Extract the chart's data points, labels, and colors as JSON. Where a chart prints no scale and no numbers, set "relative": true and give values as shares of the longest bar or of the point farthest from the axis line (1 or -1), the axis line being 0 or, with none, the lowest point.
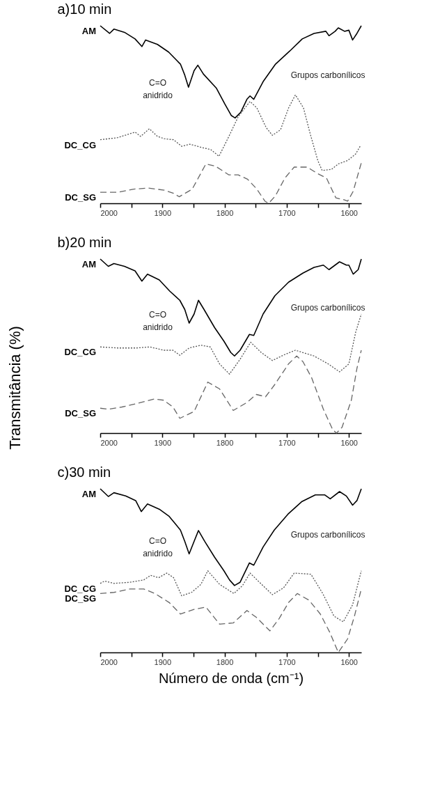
{
  "chart_data": [
    {
      "type": "line",
      "title": "a)10 min",
      "relative": true,
      "xlim": [
        2000,
        1580
      ],
      "xticks": [
        2000,
        {
          "value": 1950,
          "label": null
        },
        1900,
        {
          "value": 1850,
          "label": null
        },
        1800,
        {
          "value": 1750,
          "label": null
        },
        1700,
        {
          "value": 1650,
          "label": null
        },
        1600
      ],
      "grid": false,
      "legend": false,
      "marker": "none",
      "annotations": [
        "C=O\nanidrido",
        "Grupos carbonílicos"
      ],
      "series": [
        {
          "name": "AM",
          "color": "#000000",
          "line_style": "solid",
          "x": [
            2000,
            1985,
            1978,
            1961,
            1944,
            1933,
            1927,
            1908,
            1890,
            1871,
            1864,
            1858,
            1849,
            1843,
            1834,
            1813,
            1800,
            1789,
            1783,
            1774,
            1764,
            1759,
            1753,
            1738,
            1718,
            1695,
            1675,
            1656,
            1637,
            1632,
            1622,
            1617,
            1607,
            1600,
            1594,
            1587,
            1580
          ],
          "values": [
            1.0,
            0.957,
            0.981,
            0.963,
            0.926,
            0.883,
            0.92,
            0.895,
            0.852,
            0.784,
            0.722,
            0.654,
            0.747,
            0.778,
            0.728,
            0.648,
            0.562,
            0.494,
            0.481,
            0.512,
            0.586,
            0.605,
            0.586,
            0.685,
            0.784,
            0.858,
            0.926,
            0.957,
            0.969,
            0.944,
            0.969,
            0.988,
            0.969,
            0.975,
            0.92,
            0.957,
            1.0
          ]
        },
        {
          "name": "DC_CG",
          "color": "#555555",
          "line_style": "dotted",
          "x": [
            2000,
            1972,
            1944,
            1935,
            1921,
            1908,
            1897,
            1882,
            1869,
            1856,
            1837,
            1822,
            1809,
            1793,
            1778,
            1759,
            1748,
            1733,
            1723,
            1710,
            1697,
            1686,
            1673,
            1662,
            1650,
            1643,
            1628,
            1617,
            1602,
            1589,
            1581
          ],
          "values": [
            0.358,
            0.37,
            0.401,
            0.377,
            0.42,
            0.377,
            0.364,
            0.358,
            0.321,
            0.333,
            0.315,
            0.302,
            0.265,
            0.377,
            0.488,
            0.574,
            0.537,
            0.426,
            0.383,
            0.414,
            0.537,
            0.611,
            0.537,
            0.389,
            0.241,
            0.185,
            0.191,
            0.222,
            0.241,
            0.278,
            0.327
          ]
        },
        {
          "name": "DC_SG",
          "color": "#666666",
          "line_style": "dashed",
          "x": [
            2000,
            1972,
            1946,
            1923,
            1897,
            1882,
            1873,
            1852,
            1830,
            1815,
            1793,
            1778,
            1763,
            1748,
            1735,
            1729,
            1718,
            1703,
            1688,
            1667,
            1650,
            1636,
            1621,
            1607,
            1602,
            1593,
            1580
          ],
          "values": [
            0.062,
            0.062,
            0.08,
            0.086,
            0.074,
            0.056,
            0.037,
            0.08,
            0.222,
            0.21,
            0.16,
            0.16,
            0.136,
            0.08,
            0.012,
            0.0,
            0.043,
            0.142,
            0.204,
            0.204,
            0.167,
            0.142,
            0.031,
            0.019,
            0.012,
            0.068,
            0.228
          ]
        }
      ]
    },
    {
      "type": "line",
      "title": "b)20 min",
      "ylabel": "Transmitância (%)",
      "relative": true,
      "xlim": [
        2000,
        1580
      ],
      "xticks": [
        2000,
        {
          "value": 1950,
          "label": null
        },
        1900,
        {
          "value": 1850,
          "label": null
        },
        1800,
        {
          "value": 1750,
          "label": null
        },
        1700,
        {
          "value": 1650,
          "label": null
        },
        1600
      ],
      "grid": false,
      "legend": false,
      "marker": "none",
      "annotations": [
        "C=O\nanidrido",
        "Grupos carbonílicos"
      ],
      "series": [
        {
          "name": "AM",
          "color": "#000000",
          "line_style": "solid",
          "x": [
            2000,
            1987,
            1978,
            1961,
            1944,
            1933,
            1924,
            1905,
            1888,
            1872,
            1864,
            1857,
            1849,
            1842,
            1833,
            1816,
            1801,
            1790,
            1784,
            1775,
            1760,
            1753,
            1738,
            1719,
            1697,
            1674,
            1656,
            1641,
            1632,
            1615,
            1604,
            1600,
            1593,
            1585,
            1580
          ],
          "values": [
            1.0,
            0.958,
            0.974,
            0.958,
            0.932,
            0.873,
            0.913,
            0.88,
            0.815,
            0.763,
            0.71,
            0.632,
            0.684,
            0.763,
            0.71,
            0.606,
            0.528,
            0.463,
            0.443,
            0.476,
            0.567,
            0.561,
            0.684,
            0.789,
            0.867,
            0.919,
            0.952,
            0.965,
            0.939,
            0.984,
            0.965,
            0.965,
            0.913,
            0.939,
            1.0
          ]
        },
        {
          "name": "DC_CG",
          "color": "#555555",
          "line_style": "dotted",
          "x": [
            2000,
            1972,
            1942,
            1920,
            1898,
            1883,
            1872,
            1857,
            1838,
            1823,
            1808,
            1792,
            1775,
            1758,
            1741,
            1723,
            1704,
            1686,
            1656,
            1633,
            1615,
            1600,
            1589,
            1580
          ],
          "values": [
            0.495,
            0.489,
            0.489,
            0.495,
            0.476,
            0.476,
            0.447,
            0.489,
            0.505,
            0.495,
            0.397,
            0.339,
            0.424,
            0.522,
            0.463,
            0.417,
            0.45,
            0.476,
            0.443,
            0.397,
            0.352,
            0.397,
            0.58,
            0.684
          ]
        },
        {
          "name": "DC_SG",
          "color": "#666666",
          "line_style": "dashed",
          "x": [
            2000,
            1987,
            1965,
            1942,
            1913,
            1898,
            1883,
            1872,
            1849,
            1827,
            1808,
            1786,
            1764,
            1749,
            1734,
            1719,
            1697,
            1684,
            1674,
            1660,
            1641,
            1626,
            1620,
            1611,
            1596,
            1587,
            1580
          ],
          "values": [
            0.143,
            0.137,
            0.15,
            0.169,
            0.196,
            0.189,
            0.15,
            0.085,
            0.124,
            0.293,
            0.254,
            0.13,
            0.176,
            0.222,
            0.209,
            0.28,
            0.398,
            0.443,
            0.411,
            0.319,
            0.137,
            0.02,
            0.0,
            0.033,
            0.189,
            0.372,
            0.476
          ]
        }
      ]
    },
    {
      "type": "line",
      "title": "c)30 min",
      "xlabel": "Número de onda (cm⁻¹)",
      "relative": true,
      "xlim": [
        2000,
        1580
      ],
      "xticks": [
        2000,
        {
          "value": 1950,
          "label": null
        },
        1900,
        {
          "value": 1850,
          "label": null
        },
        1800,
        {
          "value": 1750,
          "label": null
        },
        1700,
        {
          "value": 1650,
          "label": null
        },
        1600
      ],
      "grid": false,
      "legend": false,
      "marker": "none",
      "annotations": [
        "C=O\nanidrido",
        "Grupos carbonílicos"
      ],
      "series": [
        {
          "name": "AM",
          "color": "#000000",
          "line_style": "solid",
          "x": [
            2000,
            1987,
            1978,
            1959,
            1943,
            1934,
            1924,
            1904,
            1889,
            1871,
            1864,
            1857,
            1849,
            1842,
            1832,
            1816,
            1801,
            1792,
            1784,
            1775,
            1760,
            1753,
            1738,
            1720,
            1698,
            1676,
            1654,
            1639,
            1630,
            1615,
            1604,
            1594,
            1587,
            1580
          ],
          "values": [
            1.0,
            0.953,
            0.976,
            0.956,
            0.928,
            0.861,
            0.907,
            0.873,
            0.831,
            0.748,
            0.679,
            0.602,
            0.679,
            0.745,
            0.679,
            0.582,
            0.499,
            0.443,
            0.409,
            0.429,
            0.547,
            0.533,
            0.644,
            0.748,
            0.845,
            0.921,
            0.963,
            0.963,
            0.939,
            0.983,
            0.956,
            0.9,
            0.928,
            1.0
          ]
        },
        {
          "name": "DC_CG",
          "color": "#555555",
          "line_style": "dotted",
          "x": [
            2000,
            1993,
            1978,
            1952,
            1930,
            1919,
            1906,
            1893,
            1882,
            1869,
            1853,
            1838,
            1827,
            1808,
            1785,
            1771,
            1759,
            1742,
            1723,
            1705,
            1688,
            1661,
            1642,
            1624,
            1609,
            1594,
            1580
          ],
          "values": [
            0.422,
            0.436,
            0.422,
            0.429,
            0.443,
            0.471,
            0.457,
            0.485,
            0.457,
            0.346,
            0.367,
            0.416,
            0.499,
            0.416,
            0.36,
            0.409,
            0.485,
            0.422,
            0.353,
            0.395,
            0.485,
            0.478,
            0.36,
            0.222,
            0.187,
            0.291,
            0.499
          ]
        },
        {
          "name": "DC_SG",
          "color": "#666666",
          "line_style": "dashed",
          "x": [
            2000,
            1978,
            1952,
            1930,
            1912,
            1889,
            1871,
            1849,
            1830,
            1808,
            1786,
            1764,
            1749,
            1727,
            1712,
            1697,
            1683,
            1664,
            1646,
            1631,
            1617,
            1602,
            1591,
            1580
          ],
          "values": [
            0.36,
            0.367,
            0.388,
            0.388,
            0.36,
            0.305,
            0.235,
            0.263,
            0.277,
            0.173,
            0.18,
            0.256,
            0.215,
            0.132,
            0.208,
            0.305,
            0.36,
            0.319,
            0.235,
            0.125,
            0.0,
            0.083,
            0.222,
            0.388
          ]
        }
      ]
    }
  ]
}
